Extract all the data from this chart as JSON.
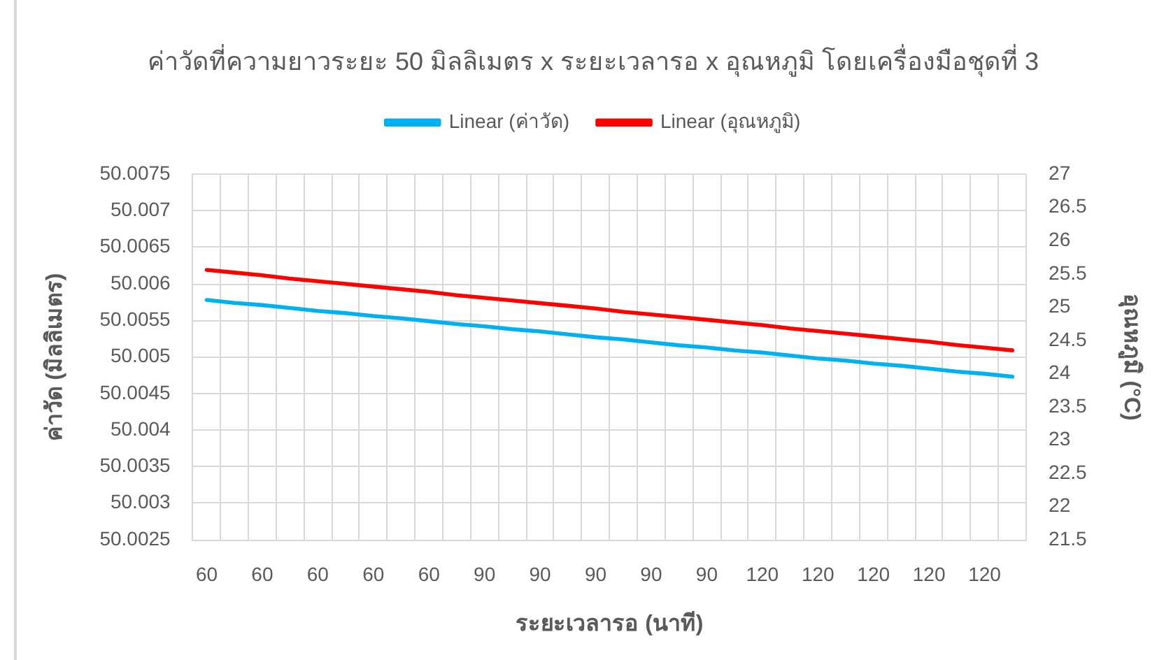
{
  "chart_data": {
    "type": "line",
    "title": "ค่าวัดที่ความยาวระยะ 50 มิลลิเมตร x ระยะเวลารอ x อุณหภูมิ โดยเครื่องมือชุดที่ 3",
    "xlabel": "ระยะเวลารอ (นาที)",
    "ylabel": "ค่าวัด (มิลลิเมตร)",
    "y2label": "อุณหภูมิ (°C)",
    "categories": [
      "60",
      null,
      "60",
      null,
      "60",
      null,
      "60",
      null,
      "60",
      null,
      "90",
      null,
      "90",
      null,
      "90",
      null,
      "90",
      null,
      "90",
      null,
      "120",
      null,
      "120",
      null,
      "120",
      null,
      "120",
      null,
      "120",
      null
    ],
    "series": [
      {
        "name": "Linear (ค่าวัด)",
        "color": "#00b0f0",
        "values": [
          50.00578,
          50.00574,
          50.00571,
          50.00567,
          50.00563,
          50.0056,
          50.00556,
          50.00553,
          50.00549,
          50.00545,
          50.00542,
          50.00538,
          50.00535,
          50.00531,
          50.00527,
          50.00524,
          50.0052,
          50.00516,
          50.00513,
          50.00509,
          50.00506,
          50.00502,
          50.00498,
          50.00495,
          50.00491,
          50.00488,
          50.00484,
          50.0048,
          50.00477,
          50.00473
        ]
      },
      {
        "name": "Linear (อุณหภูมิ)",
        "color": "#ff0000",
        "axis": "y2",
        "values": [
          25.56,
          25.52,
          25.48,
          25.43,
          25.39,
          25.35,
          25.31,
          25.27,
          25.23,
          25.18,
          25.14,
          25.1,
          25.06,
          25.02,
          24.98,
          24.93,
          24.89,
          24.85,
          24.81,
          24.77,
          24.73,
          24.68,
          24.64,
          24.6,
          24.56,
          24.52,
          24.48,
          24.43,
          24.39,
          24.35
        ]
      }
    ],
    "ylim": [
      50.0025,
      50.0075
    ],
    "yticks": [
      50.0025,
      50.003,
      50.0035,
      50.004,
      50.0045,
      50.005,
      50.0055,
      50.006,
      50.0065,
      50.007,
      50.0075
    ],
    "y2lim": [
      21.5,
      27
    ],
    "y2ticks": [
      21.5,
      22,
      22.5,
      23,
      23.5,
      24,
      24.5,
      25,
      25.5,
      26,
      26.5,
      27
    ],
    "grid": true,
    "legend": "top",
    "marker": "none",
    "line_style": "solid"
  }
}
